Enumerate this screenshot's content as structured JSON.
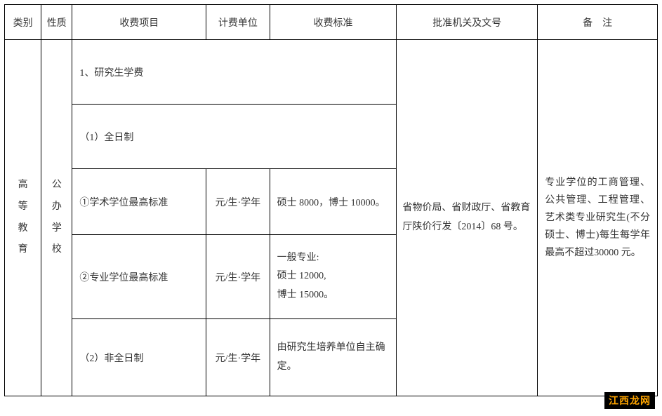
{
  "header": {
    "category": "类别",
    "nature": "性质",
    "item": "收费项目",
    "unit": "计费单位",
    "standard": "收费标准",
    "approval": "批准机关及文号",
    "remark": "备　注"
  },
  "body": {
    "category_chars": [
      "高",
      "等",
      "教",
      "育"
    ],
    "nature_chars": [
      "公",
      "办",
      "学",
      "校"
    ],
    "rows": [
      {
        "item": "1、研究生学费",
        "unit": "",
        "standard": ""
      },
      {
        "item": "（1）全日制",
        "unit": "",
        "standard": ""
      },
      {
        "item": "①学术学位最高标准",
        "unit": "元/生·学年",
        "standard": "硕士 8000，博士 10000。"
      },
      {
        "item": "②专业学位最高标准",
        "unit": "元/生·学年",
        "standard_lines": [
          "一般专业:",
          "硕士 12000,",
          "博士 15000。"
        ]
      },
      {
        "item": "（2）非全日制",
        "unit": "元/生·学年",
        "standard": "由研究生培养单位自主确定。"
      }
    ],
    "approval": "省物价局、省财政厅、省教育厅陕价行发〔2014〕68 号。",
    "remark": "专业学位的工商管理、公共管理、工程管理、艺术类专业研究生(不分硕士、博士)每生每学年最高不超过30000 元。"
  },
  "watermark": "江西龙网",
  "colors": {
    "border": "#000000",
    "text": "#333333",
    "background": "#ffffff",
    "watermark_bg": "#000000",
    "watermark_fg": "#ffa500"
  }
}
